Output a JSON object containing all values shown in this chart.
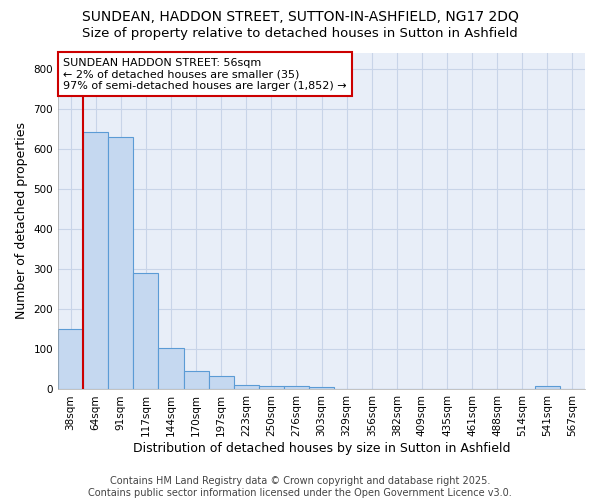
{
  "title_line1": "SUNDEAN, HADDON STREET, SUTTON-IN-ASHFIELD, NG17 2DQ",
  "title_line2": "Size of property relative to detached houses in Sutton in Ashfield",
  "xlabel": "Distribution of detached houses by size in Sutton in Ashfield",
  "ylabel": "Number of detached properties",
  "bin_labels": [
    "38sqm",
    "64sqm",
    "91sqm",
    "117sqm",
    "144sqm",
    "170sqm",
    "197sqm",
    "223sqm",
    "250sqm",
    "276sqm",
    "303sqm",
    "329sqm",
    "356sqm",
    "382sqm",
    "409sqm",
    "435sqm",
    "461sqm",
    "488sqm",
    "514sqm",
    "541sqm",
    "567sqm"
  ],
  "bar_heights": [
    150,
    643,
    630,
    290,
    103,
    45,
    33,
    10,
    9,
    8,
    6,
    0,
    0,
    0,
    0,
    0,
    0,
    0,
    0,
    8,
    0
  ],
  "bar_color": "#c5d8f0",
  "bar_edge_color": "#5b9bd5",
  "vline_x": 0.5,
  "vline_color": "#cc0000",
  "annotation_text": "SUNDEAN HADDON STREET: 56sqm\n← 2% of detached houses are smaller (35)\n97% of semi-detached houses are larger (1,852) →",
  "annotation_box_color": "#ffffff",
  "annotation_box_edge_color": "#cc0000",
  "ylim": [
    0,
    840
  ],
  "yticks": [
    0,
    100,
    200,
    300,
    400,
    500,
    600,
    700,
    800
  ],
  "grid_color": "#c8d4e8",
  "background_color": "#ffffff",
  "plot_bg_color": "#e8eef8",
  "footer_text": "Contains HM Land Registry data © Crown copyright and database right 2025.\nContains public sector information licensed under the Open Government Licence v3.0.",
  "title_fontsize": 10,
  "subtitle_fontsize": 9.5,
  "axis_label_fontsize": 9,
  "tick_fontsize": 7.5,
  "annotation_fontsize": 8,
  "footer_fontsize": 7
}
